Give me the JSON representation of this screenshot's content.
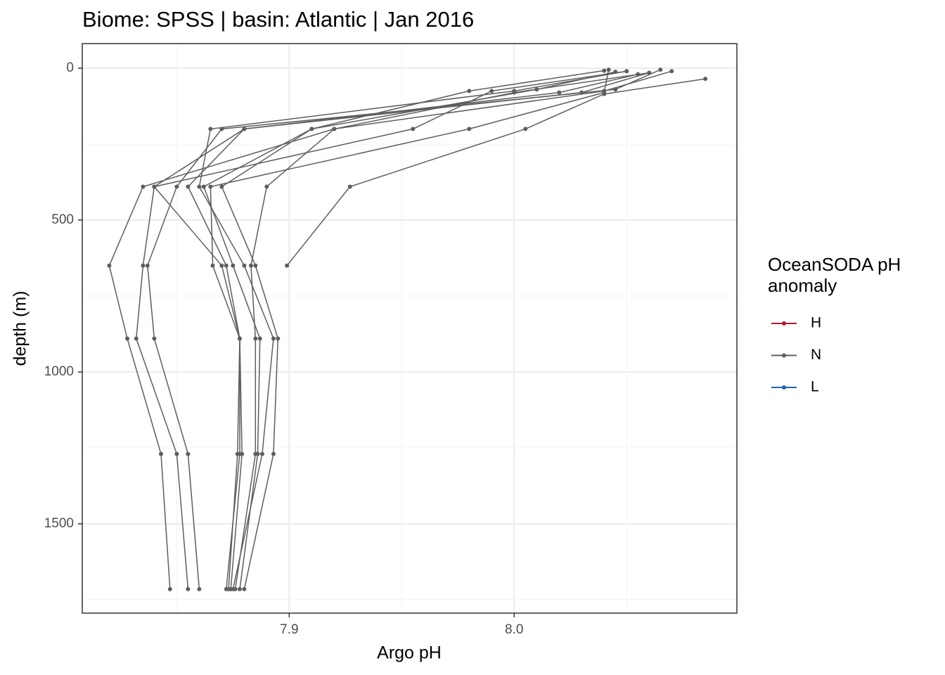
{
  "chart_data": {
    "type": "profile",
    "title": "Biome: SPSS | basin: Atlantic  | Jan 2016",
    "x_label": "Argo pH",
    "y_label": "depth (m)",
    "xlim": [
      7.808,
      8.099
    ],
    "xticks": [
      7.9,
      {
        "value": 8,
        "label": "8.0"
      }
    ],
    "ylim": [
      -81,
      1794
    ],
    "y_reverse": true,
    "yticks": [
      0,
      500,
      1000,
      1500
    ],
    "grid": true,
    "legend_title": [
      "OceanSODA pH",
      "anomaly"
    ],
    "series": [
      {
        "name": "H",
        "color": "#b2182b",
        "profiles": []
      },
      {
        "name": "N",
        "color": "#5e5e5e",
        "profiles": [
          {
            "x": [
              8.07,
              8.04,
              7.92,
              7.835,
              7.82,
              7.828,
              7.843,
              7.847
            ],
            "y": [
              10,
              75,
              200,
              390,
              650,
              890,
              1270,
              1715
            ]
          },
          {
            "x": [
              8.06,
              8.03,
              7.88,
              7.84,
              7.835,
              7.832,
              7.85,
              7.855
            ],
            "y": [
              15,
              80,
              200,
              390,
              650,
              890,
              1270,
              1715
            ]
          },
          {
            "x": [
              8.065,
              8.045,
              7.87,
              7.85,
              7.837,
              7.84,
              7.855,
              7.86
            ],
            "y": [
              5,
              70,
              200,
              390,
              650,
              890,
              1270,
              1715
            ]
          },
          {
            "x": [
              8.05,
              8.0,
              7.865,
              7.86,
              7.88,
              7.893,
              7.888,
              7.875
            ],
            "y": [
              10,
              75,
              200,
              390,
              650,
              890,
              1270,
              1715
            ]
          },
          {
            "x": [
              8.055,
              8.02,
              7.88,
              7.855,
              7.872,
              7.878,
              7.878,
              7.872
            ],
            "y": [
              20,
              80,
              200,
              390,
              650,
              890,
              1270,
              1715
            ]
          },
          {
            "x": [
              8.045,
              8.01,
              7.91,
              7.862,
              7.875,
              7.887,
              7.886,
              7.878
            ],
            "y": [
              12,
              70,
              200,
              390,
              650,
              890,
              1270,
              1715
            ]
          },
          {
            "x": [
              8.04,
              7.98,
              7.91,
              7.87,
              7.885,
              7.895,
              7.893,
              7.88
            ],
            "y": [
              8,
              75,
              200,
              390,
              650,
              890,
              1270,
              1715
            ]
          },
          {
            "x": [
              8.06,
              8.0,
              7.92,
              7.89,
              7.883,
              7.885,
              7.885,
              7.876
            ],
            "y": [
              15,
              80,
              200,
              390,
              650,
              890,
              1270,
              1715
            ]
          },
          {
            "x": [
              8.085,
              8.04,
              8.005,
              7.927,
              7.899
            ],
            "y": [
              35,
              85,
              200,
              390,
              650
            ]
          },
          {
            "x": [
              8.05,
              7.99,
              7.955,
              7.84,
              7.87,
              7.878,
              7.877,
              7.873
            ],
            "y": [
              10,
              75,
              200,
              390,
              650,
              890,
              1270,
              1715
            ]
          },
          {
            "x": [
              8.042,
              8.04,
              7.98,
              7.865,
              7.866,
              7.878,
              7.879,
              7.874
            ],
            "y": [
              5,
              80,
              200,
              390,
              650,
              890,
              1270,
              1715
            ]
          }
        ]
      },
      {
        "name": "L",
        "color": "#2166ac",
        "profiles": []
      }
    ]
  }
}
